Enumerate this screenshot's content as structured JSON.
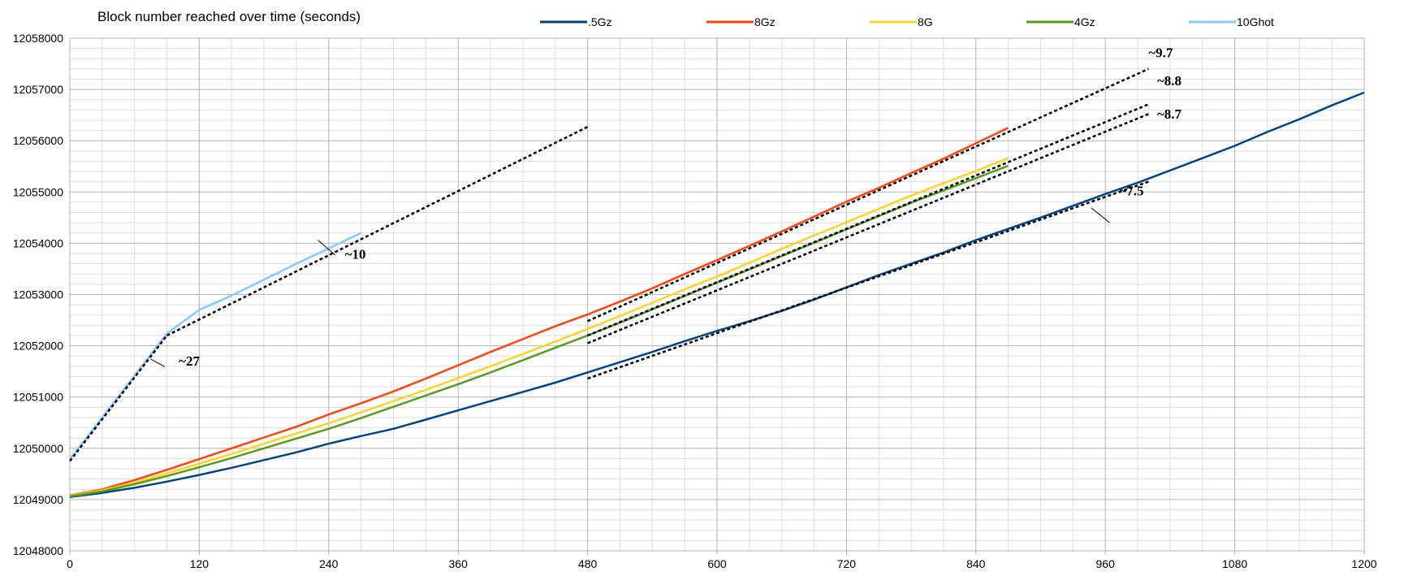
{
  "chart_data": {
    "type": "line",
    "title": "Block number reached over time (seconds)",
    "xlabel": "",
    "ylabel": "",
    "xlim": [
      0,
      1200
    ],
    "ylim": [
      12048000,
      12058000
    ],
    "x_ticks": [
      0,
      120,
      240,
      360,
      480,
      600,
      720,
      840,
      960,
      1080,
      1200
    ],
    "y_ticks": [
      12048000,
      12049000,
      12050000,
      12051000,
      12052000,
      12053000,
      12054000,
      12055000,
      12056000,
      12057000,
      12058000
    ],
    "x_minor_step": 30,
    "y_minor_step": 200,
    "grid": true,
    "legend_position": "top",
    "series": [
      {
        "name": ".5Gz",
        "color": "#004586",
        "x": [
          0,
          30,
          60,
          90,
          120,
          150,
          180,
          210,
          240,
          270,
          300,
          330,
          360,
          390,
          420,
          450,
          480,
          510,
          540,
          570,
          600,
          630,
          660,
          690,
          720,
          750,
          780,
          810,
          840,
          870,
          900,
          930,
          960,
          990,
          1020,
          1050,
          1080,
          1110,
          1140,
          1170,
          1200
        ],
        "y": [
          12049050,
          12049130,
          12049230,
          12049350,
          12049480,
          12049620,
          12049770,
          12049920,
          12050090,
          12050240,
          12050380,
          12050560,
          12050740,
          12050920,
          12051100,
          12051280,
          12051480,
          12051680,
          12051880,
          12052090,
          12052290,
          12052480,
          12052680,
          12052900,
          12053140,
          12053380,
          12053600,
          12053820,
          12054060,
          12054280,
          12054500,
          12054730,
          12054960,
          12055180,
          12055420,
          12055660,
          12055900,
          12056170,
          12056420,
          12056690,
          12056940
        ]
      },
      {
        "name": "8Gz",
        "color": "#ff420e",
        "x": [
          0,
          30,
          60,
          90,
          120,
          150,
          180,
          210,
          240,
          270,
          300,
          330,
          360,
          390,
          420,
          450,
          480,
          510,
          540,
          570,
          600,
          630,
          660,
          690,
          720,
          750,
          780,
          810,
          840,
          870
        ],
        "y": [
          12049080,
          12049200,
          12049380,
          12049580,
          12049790,
          12050000,
          12050210,
          12050420,
          12050660,
          12050880,
          12051110,
          12051360,
          12051620,
          12051880,
          12052130,
          12052380,
          12052610,
          12052860,
          12053120,
          12053400,
          12053670,
          12053950,
          12054230,
          12054520,
          12054810,
          12055080,
          12055370,
          12055650,
          12055950,
          12056250
        ]
      },
      {
        "name": "8G",
        "color": "#ffd320",
        "x": [
          0,
          30,
          60,
          90,
          120,
          150,
          180,
          210,
          240,
          270,
          300,
          330,
          360,
          390,
          420,
          450,
          480,
          510,
          540,
          570,
          600,
          630,
          660,
          690,
          720,
          750,
          780,
          810,
          840,
          870
        ],
        "y": [
          12049070,
          12049180,
          12049330,
          12049510,
          12049700,
          12049890,
          12050090,
          12050290,
          12050490,
          12050700,
          12050920,
          12051140,
          12051370,
          12051600,
          12051840,
          12052080,
          12052330,
          12052580,
          12052840,
          12053100,
          12053350,
          12053620,
          12053890,
          12054150,
          12054410,
          12054670,
          12054930,
          12055170,
          12055410,
          12055660
        ]
      },
      {
        "name": "4Gz",
        "color": "#579d1c",
        "x": [
          0,
          30,
          60,
          90,
          120,
          150,
          180,
          210,
          240,
          270,
          300,
          330,
          360,
          390,
          420,
          450,
          480,
          510,
          540,
          570,
          600,
          630,
          660,
          690,
          720,
          750,
          780,
          810,
          840,
          870
        ],
        "y": [
          12049060,
          12049160,
          12049300,
          12049460,
          12049630,
          12049810,
          12050000,
          12050190,
          12050380,
          12050590,
          12050810,
          12051030,
          12051250,
          12051480,
          12051720,
          12051960,
          12052200,
          12052450,
          12052710,
          12052970,
          12053230,
          12053490,
          12053750,
          12054010,
          12054270,
          12054530,
          12054790,
          12055030,
          12055270,
          12055510
        ]
      },
      {
        "name": "10Ghot",
        "color": "#83caff",
        "x": [
          0,
          30,
          60,
          90,
          120,
          150,
          180,
          210,
          240,
          270
        ],
        "y": [
          12049790,
          12050600,
          12051420,
          12052240,
          12052700,
          12052980,
          12053290,
          12053600,
          12053900,
          12054200
        ]
      }
    ],
    "trend_lines": [
      {
        "x": [
          0,
          90
        ],
        "y": [
          12049750,
          12052200
        ]
      },
      {
        "x": [
          90,
          480
        ],
        "y": [
          12052200,
          12056270
        ]
      },
      {
        "x": [
          480,
          1000
        ],
        "y": [
          12051360,
          12055200
        ]
      },
      {
        "x": [
          480,
          1000
        ],
        "y": [
          12052050,
          12056520
        ]
      },
      {
        "x": [
          480,
          1000
        ],
        "y": [
          12052200,
          12056710
        ]
      },
      {
        "x": [
          480,
          1000
        ],
        "y": [
          12052480,
          12057400
        ]
      }
    ],
    "annotations": [
      {
        "text": "~27",
        "x": 101,
        "y": 12051610,
        "leader": {
          "x1": 75,
          "y1": 12051740,
          "x2": 88,
          "y2": 12051590
        }
      },
      {
        "text": "~10",
        "x": 255,
        "y": 12053700,
        "leader": {
          "x1": 230,
          "y1": 12054060,
          "x2": 246,
          "y2": 12053770
        }
      },
      {
        "text": "~7.5",
        "x": 973,
        "y": 12054930,
        "leader": {
          "x1": 947,
          "y1": 12054690,
          "x2": 964,
          "y2": 12054400
        }
      },
      {
        "text": "~9.7",
        "x": 1000,
        "y": 12057630,
        "leader": null
      },
      {
        "text": "~8.8",
        "x": 1008,
        "y": 12057080,
        "leader": null
      },
      {
        "text": "~8.7",
        "x": 1008,
        "y": 12056430,
        "leader": null
      }
    ]
  }
}
